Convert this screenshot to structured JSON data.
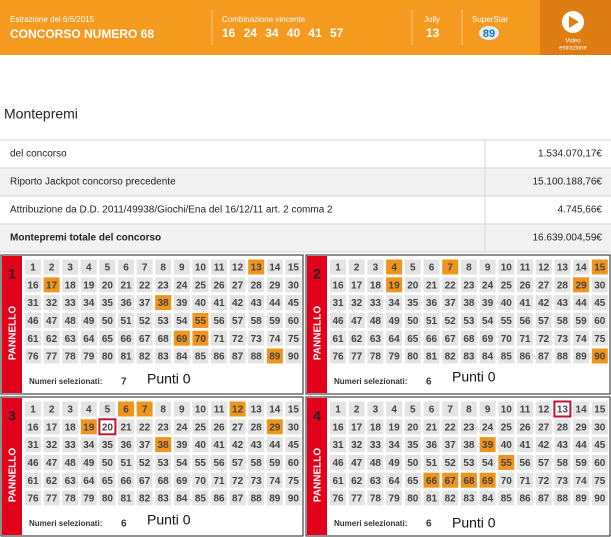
{
  "header": {
    "draw_date": "Estrazione del 6/6/2015",
    "title": "CONCORSO NUMERO 68",
    "combination_label": "Combinazione vincente",
    "combination": [
      16,
      24,
      34,
      40,
      41,
      57
    ],
    "jolly_label": "Jolly",
    "jolly": 13,
    "superstar_label": "SuperStar",
    "superstar": 89,
    "video_label": [
      "Video",
      "estrazione"
    ]
  },
  "prizes": {
    "title": "Montepremi",
    "rows": [
      [
        "del concorso",
        "1.534.070,17€"
      ],
      [
        "Riporto Jackpot concorso precedente",
        "15.100.188,76€"
      ],
      [
        "Attribuzione da D.D. 2011/49938/Giochi/Ena del 16/12/11 art. 2 comma 2",
        "4.745,66€"
      ],
      [
        "Montepremi totale del concorso",
        "16.639.004,59€"
      ]
    ]
  },
  "panels": {
    "side_label": "PANNELLO",
    "selected_label": "Numeri selezionati:",
    "numbers": [
      1,
      2,
      3,
      4,
      5,
      6,
      7,
      8,
      9,
      10,
      11,
      12,
      13,
      14,
      15,
      16,
      17,
      18,
      19,
      20,
      21,
      22,
      23,
      24,
      25,
      26,
      27,
      28,
      29,
      30,
      31,
      32,
      33,
      34,
      35,
      36,
      37,
      38,
      39,
      40,
      41,
      42,
      43,
      44,
      45,
      46,
      47,
      48,
      49,
      50,
      51,
      52,
      53,
      54,
      55,
      56,
      57,
      58,
      59,
      60,
      61,
      62,
      63,
      64,
      65,
      66,
      67,
      68,
      69,
      70,
      71,
      72,
      73,
      74,
      75,
      76,
      77,
      78,
      79,
      80,
      81,
      82,
      83,
      84,
      85,
      86,
      87,
      88,
      89,
      90
    ],
    "items": [
      {
        "number": 1,
        "highlighted": [
          13,
          17,
          38,
          55,
          69,
          70,
          89
        ],
        "selected": 7,
        "points": "Punti 0"
      },
      {
        "number": 2,
        "highlighted": [
          4,
          7,
          15,
          19,
          29,
          90
        ],
        "selected": 6,
        "points": "Punti 0"
      },
      {
        "number": 3,
        "highlighted": [
          6,
          7,
          12,
          19,
          29,
          38
        ],
        "boxed": [
          20
        ],
        "selected": 6,
        "points": "Punti 0"
      },
      {
        "number": 4,
        "highlighted": [
          39,
          55,
          66,
          67,
          68,
          69
        ],
        "boxed": [
          13
        ],
        "selected": 6,
        "points": "Punti 0"
      }
    ]
  }
}
